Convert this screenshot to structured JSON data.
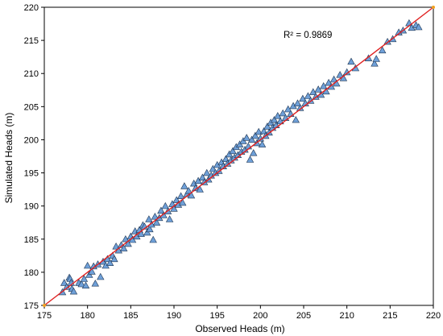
{
  "chart_data": {
    "type": "scatter",
    "xlabel": "Observed Heads (m)",
    "ylabel": "Simulated Heads (m)",
    "xlim": [
      175,
      220
    ],
    "ylim": [
      175,
      220
    ],
    "xticks": [
      175,
      180,
      185,
      190,
      195,
      200,
      205,
      210,
      215,
      220
    ],
    "yticks": [
      175,
      180,
      185,
      190,
      195,
      200,
      205,
      210,
      215,
      220
    ],
    "grid": false,
    "legend": "none",
    "annotation": "R² = 0.9869",
    "marker_color": "#6fa0d8",
    "marker_edge_color": "#1f3552",
    "reference_line": {
      "x": [
        175,
        220
      ],
      "y": [
        175,
        220
      ],
      "color": "#e02020"
    },
    "series": [
      {
        "marker": "triangle",
        "points": [
          [
            177.1,
            177.0
          ],
          [
            177.3,
            178.4
          ],
          [
            177.6,
            177.8
          ],
          [
            177.9,
            179.2
          ],
          [
            178.0,
            179.0
          ],
          [
            178.1,
            178.4
          ],
          [
            178.2,
            177.5
          ],
          [
            178.4,
            177.1
          ],
          [
            179.0,
            178.4
          ],
          [
            179.3,
            178.2
          ],
          [
            179.6,
            179.0
          ],
          [
            179.8,
            178.0
          ],
          [
            180.0,
            181.0
          ],
          [
            180.2,
            179.6
          ],
          [
            180.5,
            180.1
          ],
          [
            180.7,
            180.9
          ],
          [
            180.9,
            178.3
          ],
          [
            181.2,
            181.2
          ],
          [
            181.5,
            179.3
          ],
          [
            181.8,
            181.6
          ],
          [
            182.1,
            181.0
          ],
          [
            182.3,
            182.0
          ],
          [
            182.6,
            181.4
          ],
          [
            182.9,
            182.5
          ],
          [
            183.1,
            182.0
          ],
          [
            183.3,
            183.9
          ],
          [
            183.6,
            183.3
          ],
          [
            183.9,
            184.1
          ],
          [
            184.2,
            183.6
          ],
          [
            184.4,
            185.0
          ],
          [
            184.7,
            184.3
          ],
          [
            185.0,
            185.4
          ],
          [
            185.2,
            184.9
          ],
          [
            185.5,
            186.2
          ],
          [
            185.7,
            185.4
          ],
          [
            186.0,
            186.4
          ],
          [
            186.2,
            185.8
          ],
          [
            186.4,
            187.1
          ],
          [
            186.6,
            186.9
          ],
          [
            186.9,
            186.0
          ],
          [
            187.1,
            188.0
          ],
          [
            187.2,
            186.5
          ],
          [
            187.4,
            187.2
          ],
          [
            187.6,
            184.9
          ],
          [
            187.8,
            188.4
          ],
          [
            188.0,
            187.5
          ],
          [
            188.3,
            188.2
          ],
          [
            188.5,
            189.3
          ],
          [
            188.8,
            188.6
          ],
          [
            189.0,
            190.0
          ],
          [
            189.3,
            189.2
          ],
          [
            189.5,
            188.0
          ],
          [
            189.8,
            190.3
          ],
          [
            190.0,
            189.6
          ],
          [
            190.3,
            190.9
          ],
          [
            190.5,
            190.2
          ],
          [
            190.8,
            191.5
          ],
          [
            191.0,
            190.5
          ],
          [
            191.2,
            193.0
          ],
          [
            191.5,
            191.8
          ],
          [
            191.7,
            192.3
          ],
          [
            192.0,
            191.6
          ],
          [
            192.3,
            193.4
          ],
          [
            192.5,
            192.7
          ],
          [
            192.8,
            193.8
          ],
          [
            193.0,
            192.5
          ],
          [
            193.3,
            194.3
          ],
          [
            193.5,
            193.6
          ],
          [
            193.8,
            195.0
          ],
          [
            194.0,
            194.0
          ],
          [
            194.3,
            194.6
          ],
          [
            194.5,
            195.6
          ],
          [
            194.8,
            195.0
          ],
          [
            195.0,
            196.2
          ],
          [
            195.2,
            195.3
          ],
          [
            195.5,
            196.6
          ],
          [
            195.7,
            196.0
          ],
          [
            196.0,
            197.1
          ],
          [
            196.2,
            196.4
          ],
          [
            196.4,
            197.8
          ],
          [
            196.6,
            196.9
          ],
          [
            196.8,
            198.3
          ],
          [
            197.0,
            197.3
          ],
          [
            197.2,
            198.9
          ],
          [
            197.4,
            197.7
          ],
          [
            197.6,
            199.3
          ],
          [
            197.8,
            198.2
          ],
          [
            198.0,
            199.8
          ],
          [
            198.2,
            198.5
          ],
          [
            198.4,
            200.3
          ],
          [
            198.6,
            199.0
          ],
          [
            198.8,
            197.0
          ],
          [
            199.0,
            200.0
          ],
          [
            199.2,
            198.0
          ],
          [
            199.4,
            200.6
          ],
          [
            199.6,
            199.5
          ],
          [
            199.8,
            201.2
          ],
          [
            200.0,
            200.2
          ],
          [
            200.2,
            199.3
          ],
          [
            200.4,
            201.3
          ],
          [
            200.6,
            200.6
          ],
          [
            200.8,
            202.0
          ],
          [
            201.0,
            201.1
          ],
          [
            201.2,
            202.6
          ],
          [
            201.4,
            201.8
          ],
          [
            201.6,
            203.0
          ],
          [
            201.8,
            202.2
          ],
          [
            202.0,
            203.6
          ],
          [
            202.3,
            202.8
          ],
          [
            202.6,
            204.0
          ],
          [
            202.9,
            203.3
          ],
          [
            203.2,
            204.6
          ],
          [
            203.5,
            203.9
          ],
          [
            203.8,
            205.1
          ],
          [
            204.1,
            203.0
          ],
          [
            204.3,
            205.5
          ],
          [
            204.6,
            204.8
          ],
          [
            204.9,
            206.2
          ],
          [
            205.2,
            205.5
          ],
          [
            205.5,
            206.6
          ],
          [
            205.8,
            205.9
          ],
          [
            206.1,
            207.2
          ],
          [
            206.4,
            206.5
          ],
          [
            206.7,
            207.6
          ],
          [
            207.0,
            206.8
          ],
          [
            207.3,
            208.1
          ],
          [
            207.6,
            207.3
          ],
          [
            207.9,
            208.6
          ],
          [
            208.2,
            208.0
          ],
          [
            208.5,
            209.1
          ],
          [
            208.8,
            208.5
          ],
          [
            209.2,
            209.8
          ],
          [
            209.6,
            209.3
          ],
          [
            210.0,
            210.2
          ],
          [
            210.5,
            211.8
          ],
          [
            211.0,
            210.8
          ],
          [
            212.5,
            212.3
          ],
          [
            213.2,
            211.5
          ],
          [
            213.4,
            212.2
          ],
          [
            214.1,
            213.5
          ],
          [
            214.7,
            214.8
          ],
          [
            215.3,
            215.2
          ],
          [
            216.0,
            216.2
          ],
          [
            216.5,
            216.5
          ],
          [
            217.2,
            217.6
          ],
          [
            217.5,
            216.9
          ],
          [
            218.0,
            217.3
          ],
          [
            218.3,
            217.0
          ]
        ]
      }
    ]
  }
}
